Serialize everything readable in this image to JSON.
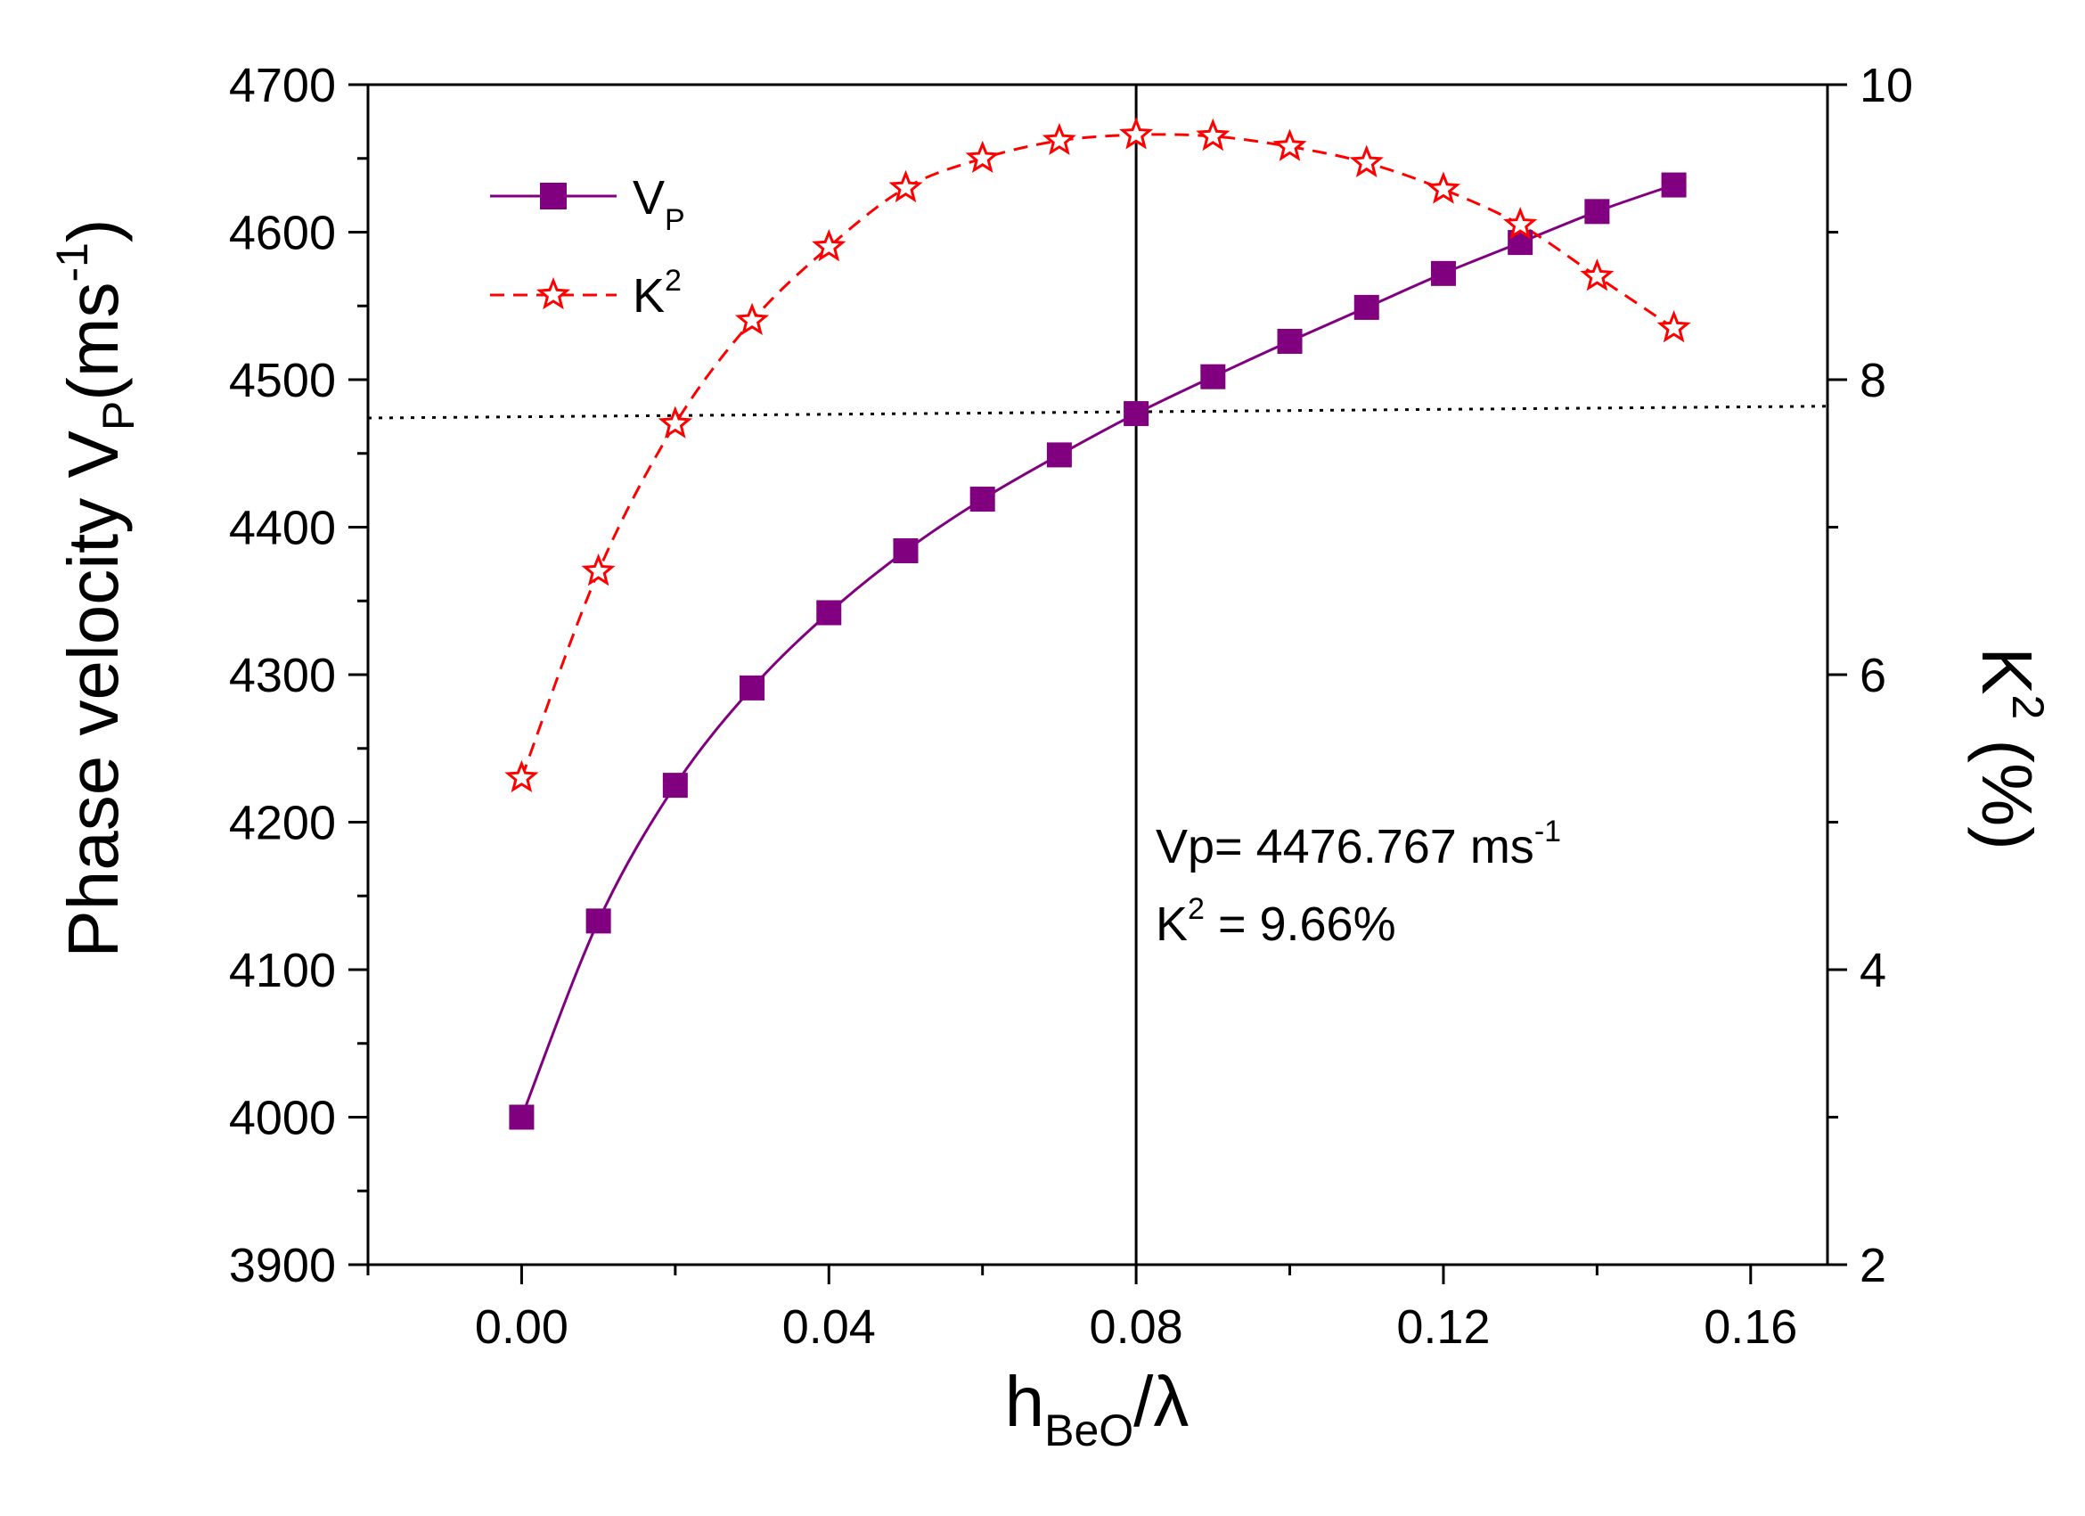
{
  "chart_data": {
    "type": "line",
    "x_axis": {
      "label_main": "h",
      "label_sub": "BeO",
      "label_tail": "/λ",
      "range": [
        -0.02,
        0.17
      ],
      "ticks": [
        0.0,
        0.04,
        0.08,
        0.12,
        0.16
      ],
      "tick_labels": [
        "0.00",
        "0.04",
        "0.08",
        "0.12",
        "0.16"
      ],
      "minor_ticks": [
        -0.02,
        0.02,
        0.06,
        0.1,
        0.14
      ]
    },
    "y_axis_left": {
      "label_main": "Phase velocity V",
      "label_sub": "P",
      "label_mid": "(ms",
      "label_sup": "-1",
      "label_end": ")",
      "range": [
        3900,
        4700
      ],
      "ticks": [
        3900,
        4000,
        4100,
        4200,
        4300,
        4400,
        4500,
        4600,
        4700
      ],
      "tick_labels": [
        "3900",
        "4000",
        "4100",
        "4200",
        "4300",
        "4400",
        "4500",
        "4600",
        "4700"
      ]
    },
    "y_axis_right": {
      "label_main": "K",
      "label_sup": "2",
      "label_tail": " (%)",
      "range": [
        2,
        10
      ],
      "ticks": [
        2,
        4,
        6,
        8,
        10
      ],
      "tick_labels": [
        "2",
        "4",
        "6",
        "8",
        "10"
      ]
    },
    "x": [
      0.0,
      0.01,
      0.02,
      0.03,
      0.04,
      0.05,
      0.06,
      0.07,
      0.08,
      0.09,
      0.1,
      0.11,
      0.12,
      0.13,
      0.14,
      0.15
    ],
    "series": [
      {
        "name": "V",
        "name_sub": "P",
        "axis": "left",
        "color": "#800080",
        "marker": "square",
        "line_style": "solid",
        "values": [
          4000,
          4133,
          4225,
          4291,
          4342,
          4384,
          4419,
          4449,
          4477,
          4502,
          4526,
          4549,
          4572,
          4593,
          4614,
          4632
        ]
      },
      {
        "name": "K",
        "name_sup": "2",
        "axis": "right",
        "color": "#ff0000",
        "marker": "star",
        "line_style": "dashed",
        "values": [
          5.3,
          6.7,
          7.7,
          8.4,
          8.9,
          9.3,
          9.5,
          9.62,
          9.66,
          9.65,
          9.58,
          9.47,
          9.29,
          9.05,
          8.7,
          8.35
        ]
      }
    ],
    "reference_lines": {
      "vertical_x": 0.08,
      "horizontal_dotted_left_start": 4474,
      "horizontal_dotted_left_end": 4482
    },
    "annotation": {
      "line1_text": "Vp= 4476.767 ms",
      "line1_sup": "-1",
      "line2_main": "K",
      "line2_sup": "2",
      "line2_tail": " = 9.66%"
    },
    "legend_position": "top-left",
    "grid": false
  }
}
